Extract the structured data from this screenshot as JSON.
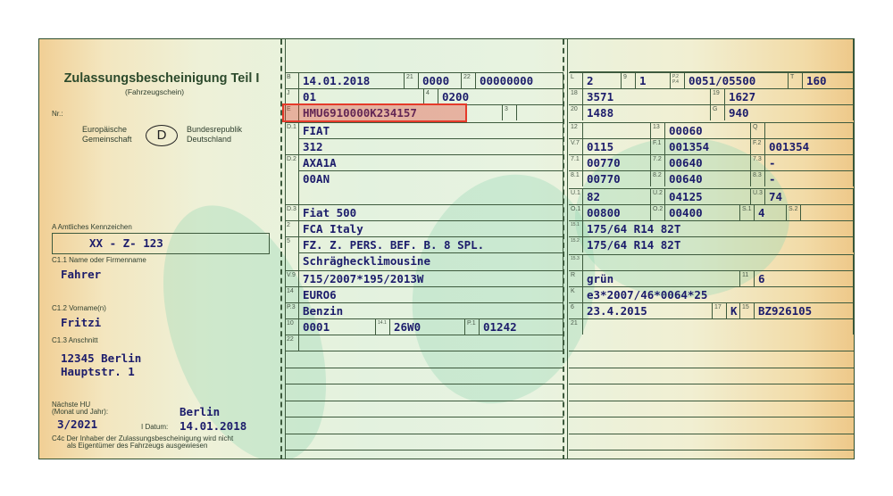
{
  "header": {
    "title": "Zulassungsbescheinigung Teil I",
    "subtitle": "(Fahrzeugschein)",
    "nr_label": "Nr.:",
    "eu_line1": "Europäische",
    "eu_line2": "Gemeinschaft",
    "country_code": "D",
    "country_line1": "Bundesrepublik",
    "country_line2": "Deutschland"
  },
  "holder": {
    "plate_label": "A Amtliches Kennzeichen",
    "plate": "XX - Z- 123",
    "name_label": "C1.1 Name oder Firmenname",
    "name": "Fahrer",
    "firstname_label": "C1.2 Vorname(n)",
    "firstname": "Fritzi",
    "address_label": "C1.3 Anschnitt",
    "address_line1": "12345 Berlin",
    "address_line2": "Hauptstr. 1",
    "hu_label1": "Nächste HU",
    "hu_label2": "(Monat und Jahr):",
    "hu": "3/2021",
    "place": "Berlin",
    "date_label": "I Datum:",
    "date": "14.01.2018",
    "note_line1": "C4c Der Inhaber der Zulassungsbescheinigung wird nicht",
    "note_line2": "als Eigentümer des Fahrzeugs ausgewiesen"
  },
  "fields": {
    "B": {
      "l": "B",
      "v": "14.01.2018"
    },
    "f21": {
      "l": "21",
      "v": "0000"
    },
    "f22": {
      "l": "22",
      "v": "00000000"
    },
    "J": {
      "l": "J",
      "v": "01"
    },
    "f4": {
      "l": "4",
      "v": "0200"
    },
    "E": {
      "l": "E",
      "v": "HMU6910000K234157"
    },
    "f3": {
      "l": "3",
      "v": ""
    },
    "D1": {
      "l": "D.1",
      "v": "FIAT",
      "v2": "312"
    },
    "D2": {
      "l": "D.2",
      "v": "AXA1A",
      "v2": "00AN"
    },
    "D3": {
      "l": "D.3",
      "v": "Fiat 500"
    },
    "f2": {
      "l": "2",
      "v": "FCA Italy"
    },
    "f5": {
      "l": "5",
      "v": "FZ. Z. PERS. BEF. B. 8 SPL.",
      "v2": "Schräghecklimousine"
    },
    "V9": {
      "l": "V.9",
      "v": "715/2007*195/2013W"
    },
    "f14": {
      "l": "14",
      "v": "EURO6"
    },
    "P3": {
      "l": "P.3",
      "v": "Benzin"
    },
    "f10": {
      "l": "10",
      "v": "0001"
    },
    "f141": {
      "l": "14.1",
      "v": "26W0"
    },
    "P1": {
      "l": "P.1",
      "v": "01242"
    },
    "f22b": {
      "l": "22",
      "v": ""
    },
    "L": {
      "l": "L",
      "v": "2"
    },
    "f9": {
      "l": "9",
      "v": "1"
    },
    "P2": {
      "l": "P.2 P.4",
      "v": "0051/05500"
    },
    "T": {
      "l": "T",
      "v": "160"
    },
    "f18": {
      "l": "18",
      "v": "3571"
    },
    "f19": {
      "l": "19",
      "v": "1627"
    },
    "f20": {
      "l": "20",
      "v": "1488"
    },
    "G": {
      "l": "G",
      "v": "940"
    },
    "f12": {
      "l": "12",
      "v": ""
    },
    "f13": {
      "l": "13",
      "v": "00060"
    },
    "Q": {
      "l": "Q",
      "v": ""
    },
    "V7": {
      "l": "V.7",
      "v": "0115"
    },
    "F1": {
      "l": "F.1",
      "v": "001354"
    },
    "F2": {
      "l": "F.2",
      "v": "001354"
    },
    "f71": {
      "l": "7.1",
      "v": "00770"
    },
    "f72": {
      "l": "7.2",
      "v": "00640"
    },
    "f73": {
      "l": "7.3",
      "v": "-"
    },
    "f81": {
      "l": "8.1",
      "v": "00770"
    },
    "f82": {
      "l": "8.2",
      "v": "00640"
    },
    "f83": {
      "l": "8.3",
      "v": "-"
    },
    "U1": {
      "l": "U.1",
      "v": "82"
    },
    "U2": {
      "l": "U.2",
      "v": "04125"
    },
    "U3": {
      "l": "U.3",
      "v": "74"
    },
    "O1": {
      "l": "O.1",
      "v": "00800"
    },
    "O2": {
      "l": "O.2",
      "v": "00400"
    },
    "S1": {
      "l": "S.1",
      "v": "4"
    },
    "S2": {
      "l": "S.2",
      "v": ""
    },
    "f151": {
      "l": "15.1",
      "v": "175/64 R14 82T"
    },
    "f152": {
      "l": "15.2",
      "v": "175/64 R14 82T"
    },
    "f153": {
      "l": "15.3",
      "v": ""
    },
    "R": {
      "l": "R",
      "v": "grün"
    },
    "f11": {
      "l": "11",
      "v": "6"
    },
    "K": {
      "l": "K",
      "v": "e3*2007/46*0064*25"
    },
    "f6": {
      "l": "6",
      "v": "23.4.2015"
    },
    "f17": {
      "l": "17",
      "v": "K"
    },
    "f16": {
      "l": "15",
      "v": "BZ926105"
    },
    "f21b": {
      "l": "21",
      "v": ""
    }
  },
  "highlight": {
    "field": "E",
    "color": "#e53a2a"
  }
}
